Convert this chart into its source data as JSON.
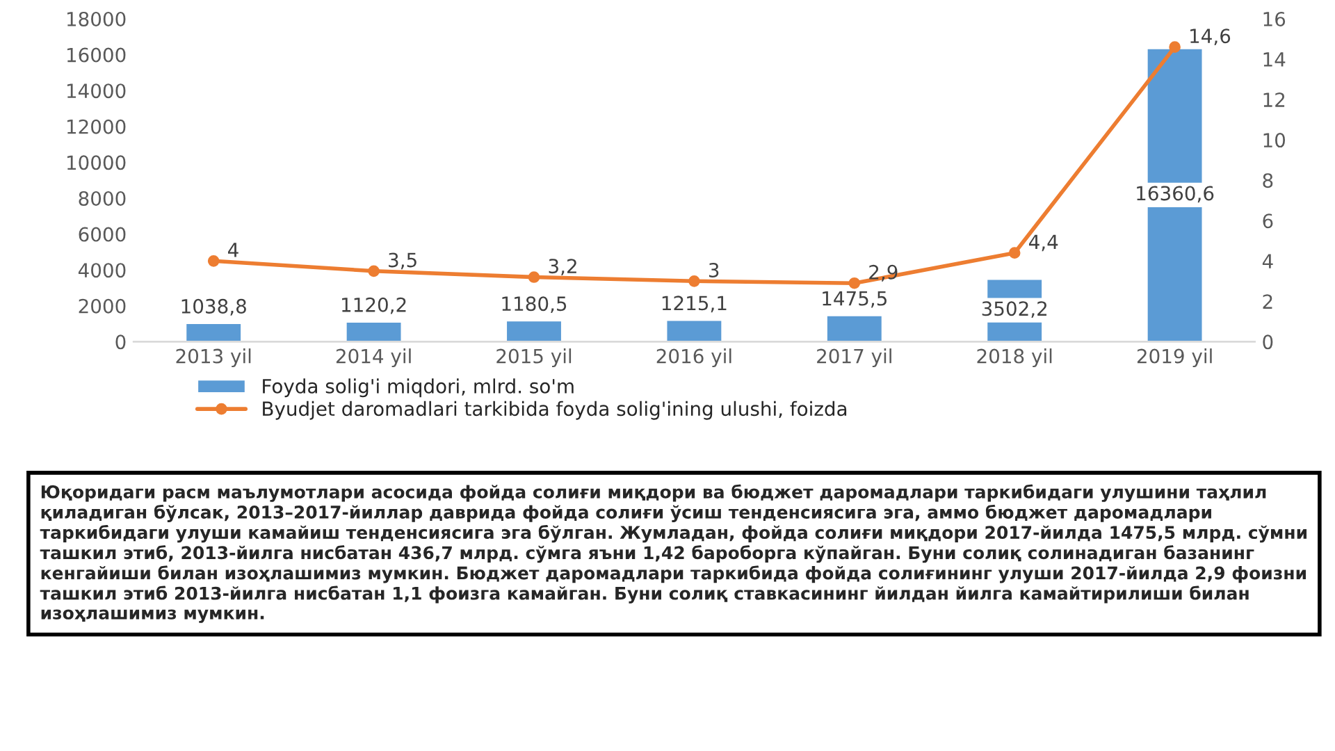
{
  "chart_data": {
    "type": "bar",
    "categories": [
      "2013 yil",
      "2014 yil",
      "2015 yil",
      "2016 yil",
      "2017 yil",
      "2018 yil",
      "2019 yil"
    ],
    "series": [
      {
        "name": "Foyda solig'i miqdori, mlrd. so'm",
        "color": "#5b9bd5",
        "values": [
          1038.8,
          1120.2,
          1180.5,
          1215.1,
          1475.5,
          3502.2,
          16360.6
        ],
        "value_labels": [
          "1038,8",
          "1120,2",
          "1180,5",
          "1215,1",
          "1475,5",
          "3502,2",
          "16360,6"
        ]
      },
      {
        "name": "Byudjet daromadlari tarkibida foyda solig'ining ulushi, foizda",
        "type": "line",
        "axis": "y2",
        "color": "#ed7d31",
        "marker": "circle",
        "values": [
          4,
          3.5,
          3.2,
          3,
          2.9,
          4.4,
          14.6
        ],
        "value_labels": [
          "4",
          "3,5",
          "3,2",
          "3",
          "2,9",
          "4,4",
          "14,6"
        ]
      }
    ],
    "ylim": [
      0,
      18000
    ],
    "yticks": [
      0,
      2000,
      4000,
      6000,
      8000,
      10000,
      12000,
      14000,
      16000,
      18000
    ],
    "y2lim": [
      0,
      16
    ],
    "y2ticks": [
      0,
      2,
      4,
      6,
      8,
      10,
      12,
      14,
      16
    ],
    "grid": false,
    "legend": "bottom",
    "annotations": [
      "Юқоридаги расм маълумотлари асосида фойда солиғи миқдори ва бюджет даромадлари таркибидаги улушини таҳлил қиладиган бўлсак, 2013–2017-йиллар даврида фойда солиғи ўсиш тенденсиясига эга, аммо бюджет даромадлари таркибидаги улуши камайиш тенденсиясига эга бўлган. Жумладан, фойда солиғи миқдори 2017-йилда 1475,5 млрд. сўмни ташкил этиб, 2013-йилга нисбатан 436,7 млрд. сўмга яъни 1,42 бароборга кўпайган. Буни солиқ солинадиган базанинг кенгайиши билан изоҳлашимиз мумкин. Бюджет даромадлари таркибида фойда солиғининг улуши 2017-йилда 2,9 фоизни ташкил этиб 2013-йилга нисбатан 1,1 фоизга камайган. Буни солиқ ставкасининг йилдан йилга камайтирилиши билан изоҳлашимиз мумкин."
    ]
  }
}
